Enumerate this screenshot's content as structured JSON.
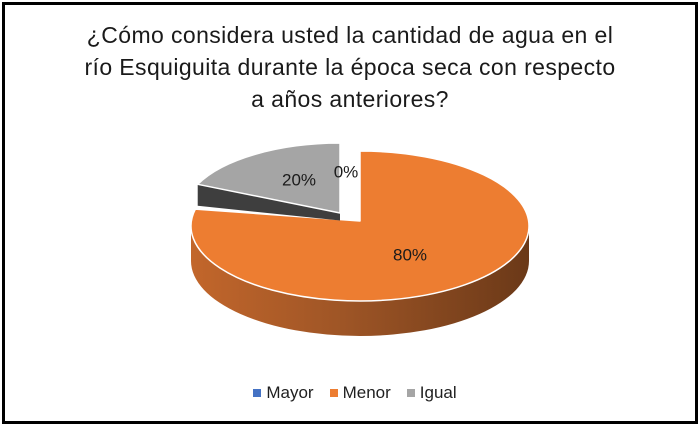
{
  "chart_data": {
    "type": "pie",
    "effect": "3d",
    "title_lines": [
      "¿Cómo considera usted la cantidad de agua en el",
      "río Esquiguita durante la época seca con respecto",
      "a años anteriores?"
    ],
    "start_angle": "12 o'clock, clockwise",
    "legend_position": "bottom",
    "slices": [
      {
        "label": "Mayor",
        "value": 0,
        "percent_label": "0%",
        "color": "#4472C4"
      },
      {
        "label": "Menor",
        "value": 80,
        "percent_label": "80%",
        "color": "#ED7D31"
      },
      {
        "label": "Igual",
        "value": 20,
        "percent_label": "20%",
        "color": "#A5A5A5"
      }
    ],
    "label_color": "#1a1a1a",
    "background": "#ffffff",
    "border_color": "#000000"
  }
}
